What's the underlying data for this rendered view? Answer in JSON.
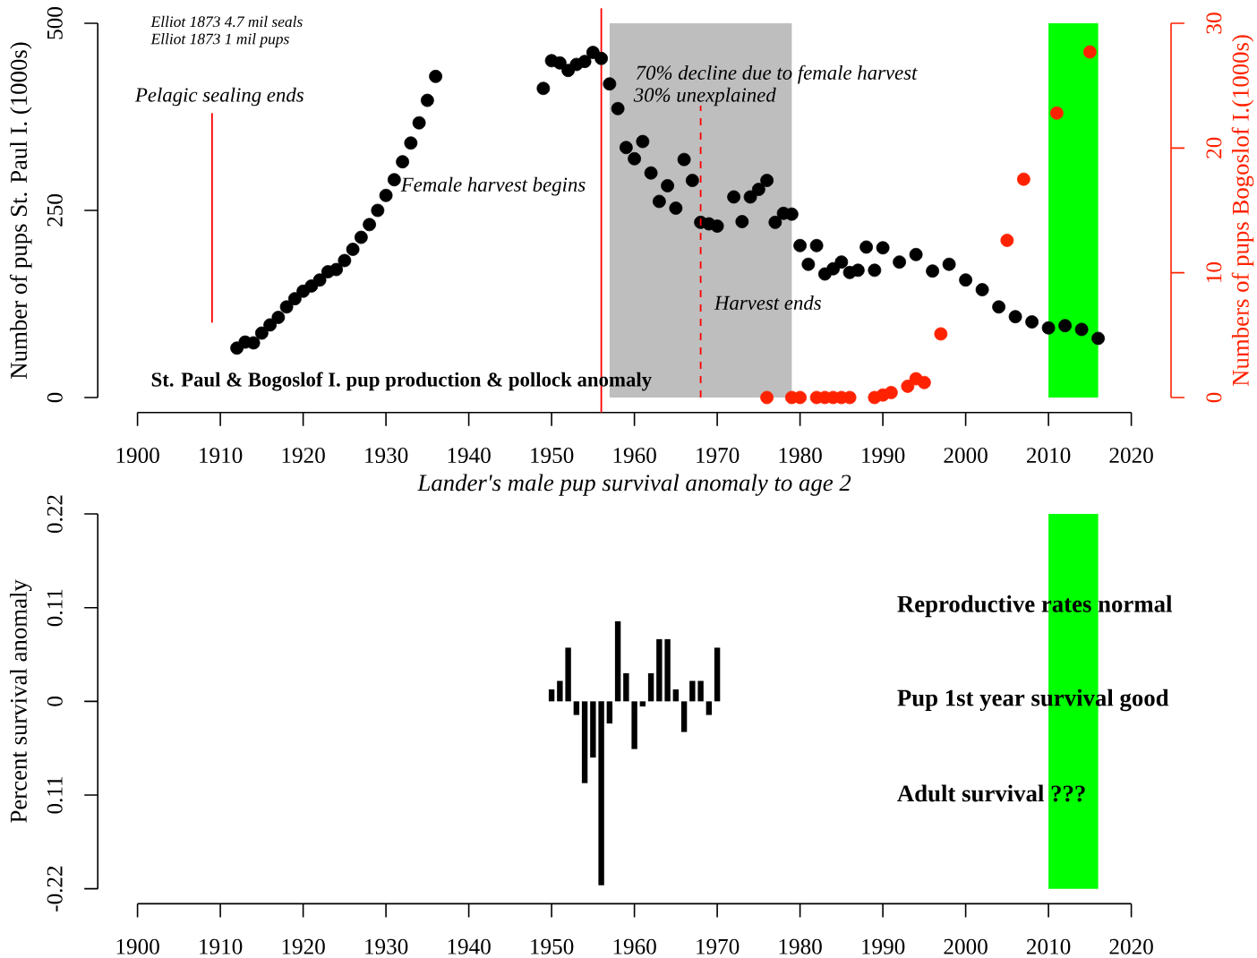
{
  "chart_data": [
    {
      "type": "scatter",
      "title": "St. Paul & Bogoslof I. pup production & pollock anomaly",
      "ylabel": "Number of pups St. Paul I. (1000s)",
      "y2label": "Numbers of pups Bogoslof I.(1000s)",
      "annotations": [
        "Elliot 1873 4.7 mil seals",
        "Elliot 1873 1 mil pups",
        "Pelagic sealing ends",
        "70% decline due to female harvest",
        "30% unexplained",
        "Harvest ends"
      ],
      "xlim": [
        1900,
        2020
      ],
      "xticks": [
        1900,
        1910,
        1920,
        1930,
        1940,
        1950,
        1960,
        1970,
        1980,
        1990,
        2000,
        2010,
        2020
      ],
      "ylim": [
        0,
        500
      ],
      "yticks": [
        0,
        250,
        500
      ],
      "y2lim": [
        0,
        30
      ],
      "y2ticks": [
        0,
        10,
        20,
        30
      ],
      "series": [
        {
          "color": "#000000",
          "marker": "circle",
          "x": [
            1912,
            1913,
            1914,
            1915,
            1916,
            1917,
            1918,
            1919,
            1920,
            1921,
            1922,
            1923,
            1924,
            1925,
            1926,
            1927,
            1928,
            1929,
            1930,
            1931,
            1932,
            1933,
            1934,
            1935,
            1936,
            1949,
            1950,
            1951,
            1952,
            1953,
            1954,
            1955,
            1956,
            1957,
            1958,
            1959,
            1960,
            1961,
            1962,
            1963,
            1964,
            1965,
            1966,
            1967,
            1968,
            1969,
            1970,
            1972,
            1973,
            1974,
            1975,
            1976,
            1977,
            1978,
            1979,
            1980,
            1981,
            1982,
            1983,
            1984,
            1985,
            1986,
            1987,
            1988,
            1989,
            1990,
            1992,
            1994,
            1996,
            1998,
            2000,
            2002,
            2004,
            2006,
            2008,
            2010,
            2012,
            2014,
            2016
          ],
          "values": [
            66,
            74,
            73,
            86,
            97,
            107,
            121,
            132,
            142,
            149,
            157,
            168,
            171,
            183,
            198,
            214,
            231,
            250,
            270,
            291,
            315,
            340,
            367,
            397,
            429,
            413,
            450,
            447,
            437,
            445,
            449,
            461,
            453,
            419,
            386,
            334,
            319,
            342,
            300,
            262,
            283,
            253,
            318,
            290,
            234,
            232,
            229,
            268,
            235,
            268,
            278,
            290,
            234,
            246,
            245,
            203,
            178,
            203,
            165,
            172,
            181,
            167,
            170,
            201,
            170,
            200,
            181,
            191,
            169,
            178,
            157,
            144,
            121,
            108,
            101,
            93,
            96,
            91,
            79
          ]
        },
        {
          "color": "#ff2200",
          "marker": "circle",
          "axis": "y2",
          "x": [
            1976,
            1979,
            1980,
            1982,
            1983,
            1984,
            1985,
            1986,
            1989,
            1990,
            1991,
            1993,
            1994,
            1995,
            1997,
            2005,
            2007,
            2011,
            2015
          ],
          "values": [
            0,
            0,
            0,
            0,
            0,
            0,
            0,
            0,
            0,
            0.2,
            0.4,
            0.9,
            1.5,
            1.2,
            5.1,
            12.6,
            17.5,
            22.8,
            27.7
          ]
        },
        {
          "type": "line",
          "color": "#ff0000",
          "x": [
            1909,
            1909
          ],
          "values": [
            100,
            380
          ]
        },
        {
          "type": "line",
          "color": "#ff0000",
          "line_style": "dashed",
          "x": [
            1968,
            1968
          ],
          "values": [
            0,
            390
          ]
        }
      ],
      "ref_lines": [
        {
          "axis": "x",
          "value": 1956,
          "label": "Female harvest begins",
          "color": "#ff0000"
        }
      ],
      "bands": [
        {
          "axis": "x",
          "from": 1957,
          "to": 1979,
          "color": "#bebebe"
        },
        {
          "axis": "x",
          "from": 2010,
          "to": 2016,
          "color": "#00ff00"
        }
      ]
    },
    {
      "type": "bar",
      "title": "Lander's male pup survival anomaly to age 2",
      "ylabel": "Percent survival anomaly",
      "annotations": [
        "Reproductive rates normal",
        "Pup 1st year survival good",
        "Adult survival ???"
      ],
      "x": [
        1950,
        1951,
        1952,
        1953,
        1954,
        1955,
        1956,
        1957,
        1958,
        1959,
        1960,
        1961,
        1962,
        1963,
        1964,
        1965,
        1966,
        1967,
        1968,
        1969,
        1970
      ],
      "values": [
        0.014,
        0.024,
        0.063,
        -0.016,
        -0.096,
        -0.066,
        -0.216,
        -0.026,
        0.094,
        0.033,
        -0.056,
        -0.006,
        0.033,
        0.073,
        0.073,
        0.014,
        -0.036,
        0.024,
        0.024,
        -0.016,
        0.063
      ],
      "color": "#000000",
      "xlim": [
        1900,
        2020
      ],
      "xticks": [
        1900,
        1910,
        1920,
        1930,
        1940,
        1950,
        1960,
        1970,
        1980,
        1990,
        2000,
        2010,
        2020
      ],
      "ylim": [
        -0.22,
        0.22
      ],
      "yticks": [
        -0.22,
        {
          "value": -0.11,
          "label": "0.11"
        },
        0,
        0.11,
        0.22
      ],
      "bands": [
        {
          "axis": "x",
          "from": 2010,
          "to": 2016,
          "color": "#00ff00"
        }
      ]
    }
  ]
}
